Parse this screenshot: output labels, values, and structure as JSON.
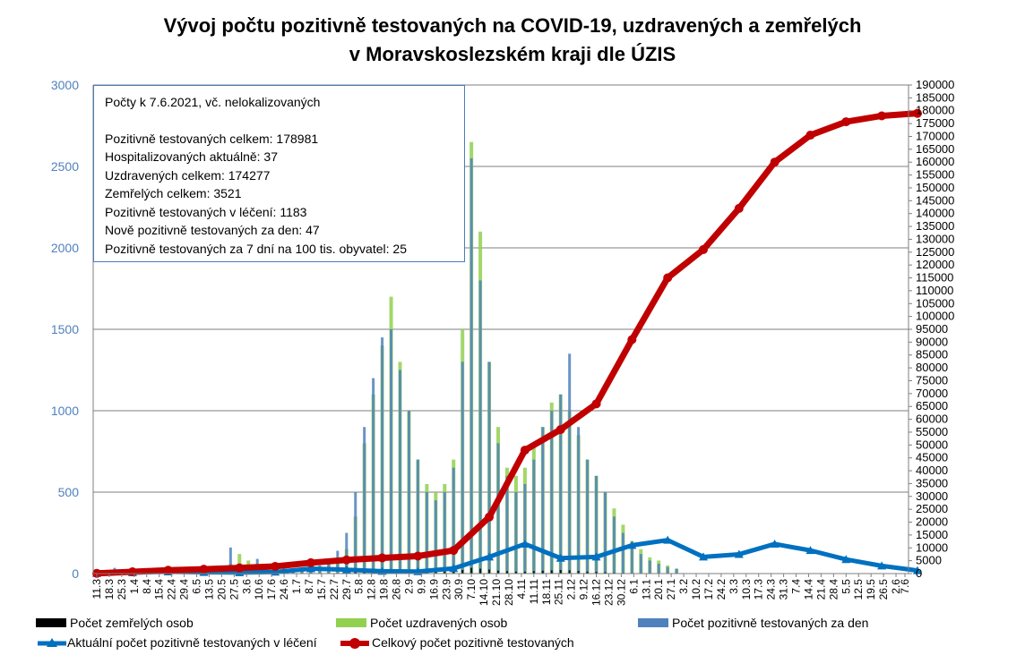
{
  "title": {
    "line1": "Vývoj počtu pozitivně testovaných na COVID-19, uzdravených a zemřelých",
    "line2": "v Moravskoslezském kraji dle ÚZIS"
  },
  "info_box": {
    "lines": [
      "Počty k 7.6.2021, vč. nelokalizovaných",
      "Pozitivně testovaných celkem: 178981",
      "Hospitalizovaných aktuálně: 37",
      "Uzdravených celkem: 174277",
      "Zemřelých celkem: 3521",
      "Pozitivně testovaných v léčení: 1183",
      "Nově pozitivně testovaných za den: 47",
      "Pozitivně testovaných za 7 dní na 100 tis. obyvatel: 25"
    ]
  },
  "legend": {
    "deaths": "Počet zemřelých osob",
    "recovered": "Počet uzdravených osob",
    "positive_daily": "Počet pozitivně testovaných za den",
    "active": "Aktuální počet pozitivně testovaných v léčení",
    "cumulative": "Celkový počet pozitivně testovaných"
  },
  "colors": {
    "deaths": "#000000",
    "recovered": "#92d050",
    "positive_daily": "#4f81bd",
    "active": "#0070c0",
    "cumulative": "#c00000",
    "left_axis_text": "#4f81bd",
    "gridline": "#7f7f7f"
  },
  "chart_data": {
    "type": "bar",
    "x_tick_labels": [
      "11.3",
      "18.3",
      "25.3",
      "1.4",
      "8.4",
      "15.4",
      "22.4",
      "29.4",
      "6.5",
      "13.5",
      "20.5",
      "27.5",
      "3.6",
      "10.6",
      "17.6",
      "24.6",
      "1.7",
      "8.7",
      "15.7",
      "22.7",
      "29.7",
      "5.8",
      "12.8",
      "19.8",
      "26.8",
      "2.9",
      "9.9",
      "16.9",
      "23.9",
      "30.9",
      "7.10",
      "14.10",
      "21.10",
      "28.10",
      "4.11",
      "11.11",
      "18.11",
      "25.11",
      "2.12",
      "9.12",
      "16.12",
      "23.12",
      "30.12",
      "6.1",
      "13.1",
      "20.1",
      "27.1",
      "3.2",
      "10.2",
      "17.2",
      "24.2",
      "3.3",
      "10.3",
      "17.3",
      "24.3",
      "31.3",
      "7.4",
      "14.4",
      "21.4",
      "28.4",
      "5.5",
      "12.5",
      "19.5",
      "26.5",
      "2.6",
      "7.6"
    ],
    "y_left": {
      "ylim": [
        0,
        3000
      ],
      "ticks": [
        0,
        500,
        1000,
        1500,
        2000,
        2500,
        3000
      ]
    },
    "y_right": {
      "ylim": [
        0,
        190000
      ],
      "tick_step": 5000
    },
    "grid": "horizontal at left-axis ticks",
    "legend_position": "bottom",
    "sample_days_every": 5,
    "positive_daily": [
      10,
      10,
      35,
      20,
      15,
      12,
      10,
      8,
      6,
      5,
      6,
      8,
      10,
      20,
      30,
      160,
      60,
      40,
      90,
      60,
      40,
      30,
      30,
      20,
      30,
      50,
      80,
      140,
      250,
      500,
      900,
      1200,
      1450,
      1500,
      1250,
      1000,
      700,
      500,
      450,
      500,
      650,
      1300,
      2550,
      1800,
      1300,
      800,
      600,
      500,
      550,
      700,
      900,
      1000,
      1100,
      1350,
      900,
      700,
      600,
      500,
      350,
      250,
      180,
      120,
      80,
      60,
      40,
      30
    ],
    "recovered_daily": [
      0,
      0,
      0,
      5,
      20,
      30,
      20,
      15,
      10,
      6,
      5,
      6,
      8,
      10,
      20,
      60,
      120,
      80,
      60,
      50,
      40,
      30,
      25,
      25,
      30,
      40,
      60,
      90,
      150,
      350,
      800,
      1100,
      1400,
      1700,
      1300,
      1000,
      700,
      550,
      500,
      550,
      700,
      1500,
      2650,
      2100,
      1300,
      900,
      650,
      600,
      650,
      800,
      900,
      1050,
      1100,
      1000,
      850,
      700,
      600,
      500,
      400,
      300,
      200,
      150,
      100,
      80,
      50,
      30
    ],
    "deaths_daily": [
      0,
      0,
      0,
      0,
      0,
      0,
      0,
      0,
      0,
      0,
      0,
      0,
      0,
      0,
      0,
      1,
      1,
      0,
      1,
      0,
      0,
      0,
      0,
      0,
      0,
      0,
      1,
      2,
      4,
      8,
      15,
      20,
      25,
      28,
      25,
      20,
      15,
      12,
      10,
      12,
      15,
      22,
      35,
      30,
      25,
      18,
      15,
      12,
      12,
      15,
      18,
      20,
      22,
      20,
      16,
      12,
      10,
      8,
      5,
      4,
      3,
      2,
      1,
      1,
      1,
      0
    ],
    "cumulative": {
      "x": [
        "11.3",
        "31.3",
        "20.4",
        "10.5",
        "30.5",
        "19.6",
        "9.7",
        "29.7",
        "18.8",
        "7.9",
        "27.9",
        "17.10",
        "6.11",
        "26.11",
        "16.12",
        "5.1",
        "25.1",
        "14.2",
        "6.3",
        "26.3",
        "15.4",
        "5.5",
        "25.5",
        "7.6"
      ],
      "values": [
        100,
        700,
        1300,
        1700,
        2200,
        2800,
        4200,
        5300,
        6100,
        6800,
        9000,
        22000,
        48000,
        56000,
        66000,
        91000,
        115000,
        126000,
        142000,
        160000,
        170500,
        175700,
        178000,
        178981
      ]
    },
    "active": {
      "x": [
        "11.3",
        "31.3",
        "20.4",
        "10.5",
        "30.5",
        "19.6",
        "9.7",
        "29.7",
        "18.8",
        "7.9",
        "27.9",
        "17.10",
        "6.11",
        "26.11",
        "16.12",
        "5.1",
        "25.1",
        "14.2",
        "6.3",
        "26.3",
        "15.4",
        "5.5",
        "25.5",
        "7.6"
      ],
      "values": [
        80,
        400,
        700,
        500,
        400,
        600,
        1900,
        1500,
        900,
        800,
        2000,
        6500,
        11500,
        6000,
        6500,
        11000,
        13000,
        6500,
        7500,
        11500,
        9000,
        5500,
        3000,
        1183
      ]
    }
  }
}
